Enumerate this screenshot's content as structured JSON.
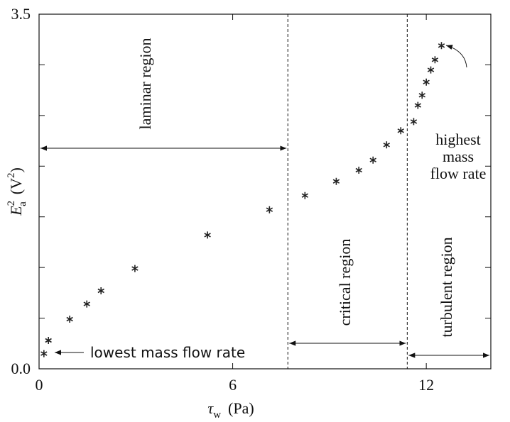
{
  "chart_data": {
    "type": "scatter",
    "xlabel": [
      "τ",
      "w",
      "(Pa)"
    ],
    "ylabel": [
      "E",
      "2",
      "a",
      "(V",
      "2",
      ")"
    ],
    "x": [
      0.15,
      0.29,
      0.95,
      1.48,
      1.92,
      2.97,
      5.22,
      7.14,
      8.24,
      9.21,
      9.91,
      10.35,
      10.77,
      11.21,
      11.61,
      11.74,
      11.87,
      12.0,
      12.14,
      12.27,
      12.47
    ],
    "values": [
      0.15,
      0.28,
      0.49,
      0.64,
      0.77,
      0.99,
      1.32,
      1.57,
      1.71,
      1.85,
      1.96,
      2.06,
      2.21,
      2.35,
      2.44,
      2.6,
      2.7,
      2.83,
      2.95,
      3.05,
      3.19
    ],
    "color": "#222222",
    "xlim": [
      0,
      14
    ],
    "ylim": [
      0,
      3.5
    ],
    "xticks": [
      0,
      6,
      12
    ],
    "yticks": [
      {
        "value": 0,
        "label": "0.0"
      },
      {
        "value": 3.5,
        "label": "3.5"
      }
    ],
    "yticks_minor": [
      0.5,
      1,
      1.5,
      2,
      2.5,
      3
    ],
    "regions": [
      {
        "label": "laminar region",
        "from": 0,
        "to": 7.71
      },
      {
        "label": "critical region",
        "from": 7.71,
        "to": 11.41
      },
      {
        "label": "turbulent region",
        "from": 11.41,
        "to": 14
      }
    ],
    "annotations": {
      "lowest": "lowest mass flow rate",
      "highest": [
        "highest",
        "mass",
        "flow rate"
      ]
    }
  }
}
